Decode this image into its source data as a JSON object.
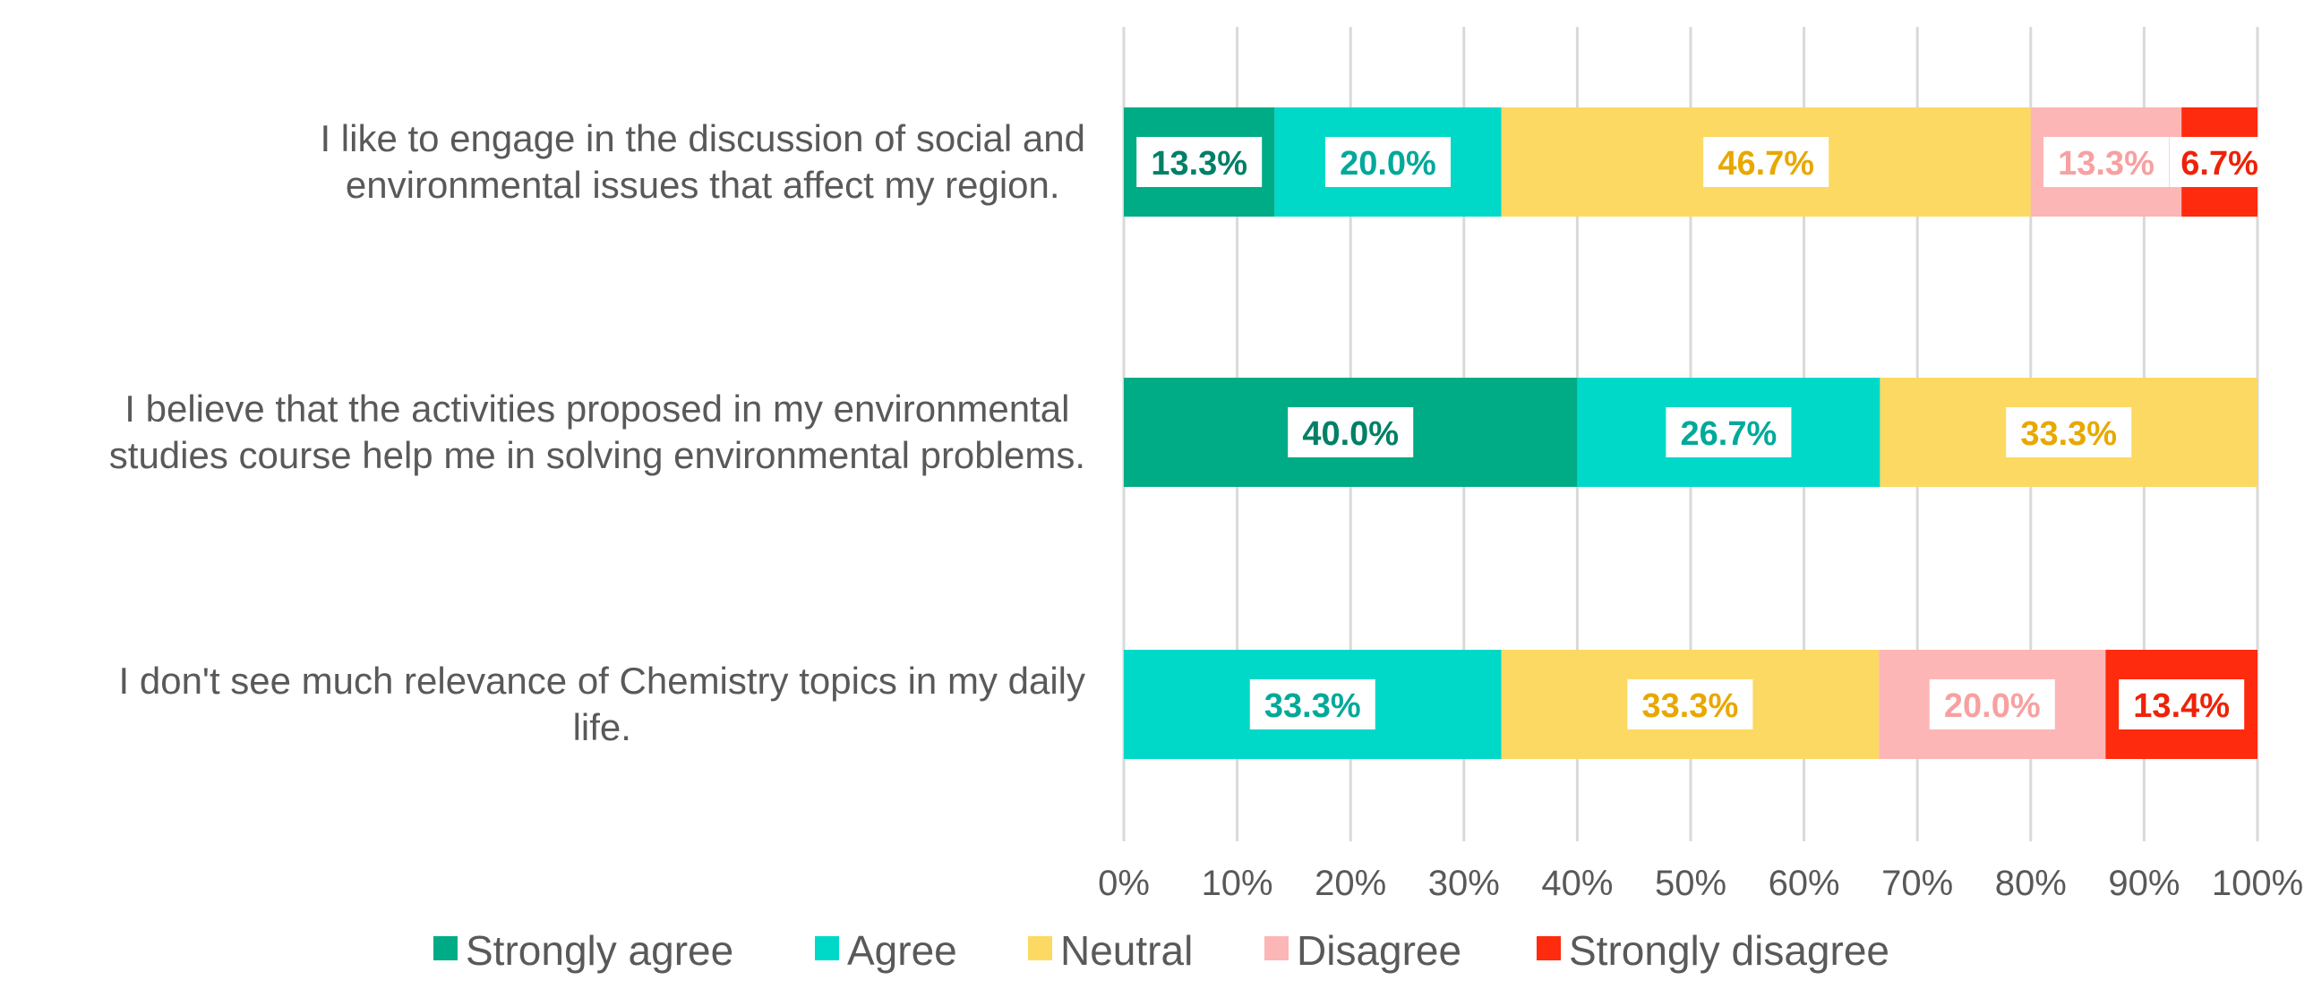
{
  "chart_data": {
    "type": "bar",
    "orientation": "horizontal",
    "stacked": "percent",
    "title": "",
    "xlabel": "",
    "ylabel": "",
    "xlim": [
      0,
      100
    ],
    "grid": true,
    "legend_position": "bottom",
    "x_tick_labels": [
      "0%",
      "10%",
      "20%",
      "30%",
      "40%",
      "50%",
      "60%",
      "70%",
      "80%",
      "90%",
      "100%"
    ],
    "categories": [
      {
        "lines": [
          "I like to engage in the discussion of social and",
          "environmental issues that affect my region."
        ]
      },
      {
        "lines": [
          "I believe that the activities proposed in my environmental",
          "studies course help me in solving environmental problems."
        ]
      },
      {
        "lines": [
          "I don't see much relevance of Chemistry topics in my daily",
          "life."
        ]
      }
    ],
    "series": [
      {
        "name": "Strongly agree",
        "color": "#00AC85",
        "label_color": "#008066",
        "values": [
          13.3,
          40.0,
          0
        ],
        "labels": [
          "13.3%",
          "40.0%",
          ""
        ]
      },
      {
        "name": "Agree",
        "color": "#00D9C8",
        "label_color": "#00A99A",
        "values": [
          20.0,
          26.7,
          33.3
        ],
        "labels": [
          "20.0%",
          "26.7%",
          "33.3%"
        ]
      },
      {
        "name": "Neutral",
        "color": "#FCD963",
        "label_color": "#E8A800",
        "values": [
          46.7,
          33.3,
          33.3
        ],
        "labels": [
          "46.7%",
          "33.3%",
          "33.3%"
        ]
      },
      {
        "name": "Disagree",
        "color": "#FDB6B6",
        "label_color": "#F8A0A0",
        "values": [
          13.3,
          0,
          20.0
        ],
        "labels": [
          "13.3%",
          "",
          "20.0%"
        ]
      },
      {
        "name": "Strongly disagree",
        "color": "#FF2B0E",
        "label_color": "#EE2208",
        "values": [
          6.7,
          0,
          13.4
        ],
        "labels": [
          "6.7%",
          "",
          "13.4%"
        ]
      }
    ]
  }
}
